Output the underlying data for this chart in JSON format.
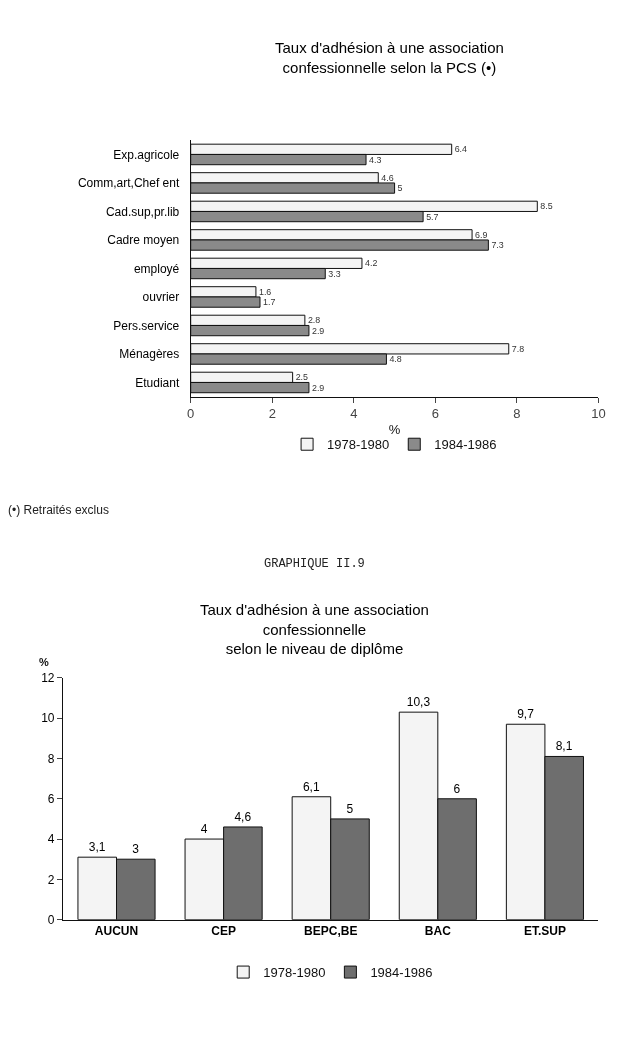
{
  "chart_data": [
    {
      "type": "bar",
      "orientation": "horizontal",
      "title": "Taux d'adhésion à une association\nconfessionnelle selon la PCS (•)",
      "xlabel": "%",
      "categories": [
        "Exp.agricole",
        "Comm,art,Chef ent",
        "Cad.sup,pr.lib",
        "Cadre moyen",
        "employé",
        "ouvrier",
        "Pers.service",
        "Ménagères",
        "Etudiant"
      ],
      "series": [
        {
          "name": "1978-1980",
          "color": "#f4f4f4",
          "values": [
            6.4,
            4.6,
            8.5,
            6.9,
            4.2,
            1.6,
            2.8,
            7.8,
            2.5
          ]
        },
        {
          "name": "1984-1986",
          "color": "#8a8a8a",
          "values": [
            4.3,
            5,
            5.7,
            7.3,
            3.3,
            1.7,
            2.9,
            4.8,
            2.9
          ]
        }
      ],
      "xlim": [
        0,
        10
      ],
      "xticks": [
        0,
        2,
        4,
        6,
        8,
        10
      ],
      "data_labels": true,
      "legend": "bottom",
      "annotations": [
        "(•) Retraités exclus"
      ]
    },
    {
      "type": "bar",
      "title": "Taux d'adhésion à une association\nconfessionnelle\nselon le niveau de diplôme",
      "ylabel": "%",
      "categories": [
        "AUCUN",
        "CEP",
        "BEPC,BE",
        "BAC",
        "ET.SUP"
      ],
      "series": [
        {
          "name": "1978-1980",
          "color": "#f4f4f4",
          "values": [
            3.1,
            4,
            6.1,
            10.3,
            9.7
          ],
          "value_labels": [
            "3,1",
            "4",
            "6,1",
            "10,3",
            "9,7"
          ]
        },
        {
          "name": "1984-1986",
          "color": "#6e6e6e",
          "values": [
            3,
            4.6,
            5,
            6,
            8.1
          ],
          "value_labels": [
            "3",
            "4,6",
            "5",
            "6",
            "8,1"
          ]
        }
      ],
      "ylim": [
        0,
        12
      ],
      "yticks": [
        0,
        2,
        4,
        6,
        8,
        10,
        12
      ],
      "legend": "bottom",
      "annotations": [
        "GRAPHIQUE II.9"
      ]
    }
  ]
}
